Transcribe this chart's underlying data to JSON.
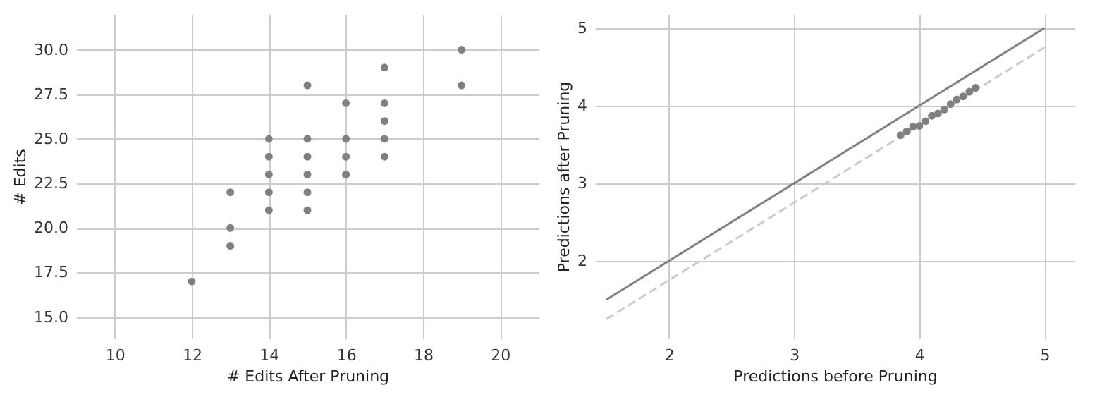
{
  "chart_data": [
    {
      "type": "scatter",
      "xlabel": "# Edits After Pruning",
      "ylabel": "# Edits",
      "xlim": [
        9,
        21
      ],
      "ylim": [
        13.8,
        32
      ],
      "xticks": [
        10,
        12,
        14,
        16,
        18,
        20
      ],
      "yticks": [
        {
          "value": 15,
          "label": "15.0"
        },
        17.5,
        {
          "value": 20,
          "label": "20.0"
        },
        22.5,
        {
          "value": 25,
          "label": "25.0"
        },
        27.5,
        {
          "value": 30,
          "label": "30.0"
        }
      ],
      "grid": true,
      "series": [
        {
          "color": "#808080",
          "marker": "circle",
          "x": [
            12,
            13,
            13,
            13,
            14,
            14,
            14,
            14,
            14,
            15,
            15,
            15,
            15,
            15,
            15,
            16,
            16,
            16,
            16,
            17,
            17,
            17,
            17,
            17,
            19,
            19
          ],
          "values": [
            17,
            22,
            20,
            19,
            25,
            24,
            23,
            22,
            21,
            28,
            25,
            24,
            23,
            22,
            21,
            27,
            25,
            24,
            23,
            29,
            27,
            26,
            25,
            24,
            30,
            28
          ]
        }
      ]
    },
    {
      "type": "line",
      "xlabel": "Predictions before Pruning",
      "ylabel": "Predictions after Pruning",
      "xlim": [
        1.41,
        5.24
      ],
      "ylim": [
        1.0,
        5.18
      ],
      "xticks": [
        2,
        3,
        4,
        5
      ],
      "yticks": [
        2,
        3,
        4,
        5
      ],
      "grid": true,
      "series": [
        {
          "color": "#808080",
          "line_style": "solid",
          "x": [
            1.5,
            5
          ],
          "values": [
            1.5,
            5
          ]
        },
        {
          "color": "#cccccc",
          "line_style": "dashed",
          "x": [
            1.5,
            5
          ],
          "values": [
            1.25,
            4.75
          ]
        },
        {
          "type": "scatter",
          "marker": "circle",
          "color": "#808080",
          "x": [
            3.85,
            3.9,
            3.95,
            4.0,
            4.05,
            4.1,
            4.15,
            4.2,
            4.25,
            4.3,
            4.35,
            4.4,
            4.45
          ],
          "values": [
            3.62,
            3.67,
            3.73,
            3.74,
            3.8,
            3.87,
            3.9,
            3.95,
            4.02,
            4.08,
            4.12,
            4.18,
            4.23
          ]
        }
      ]
    }
  ]
}
